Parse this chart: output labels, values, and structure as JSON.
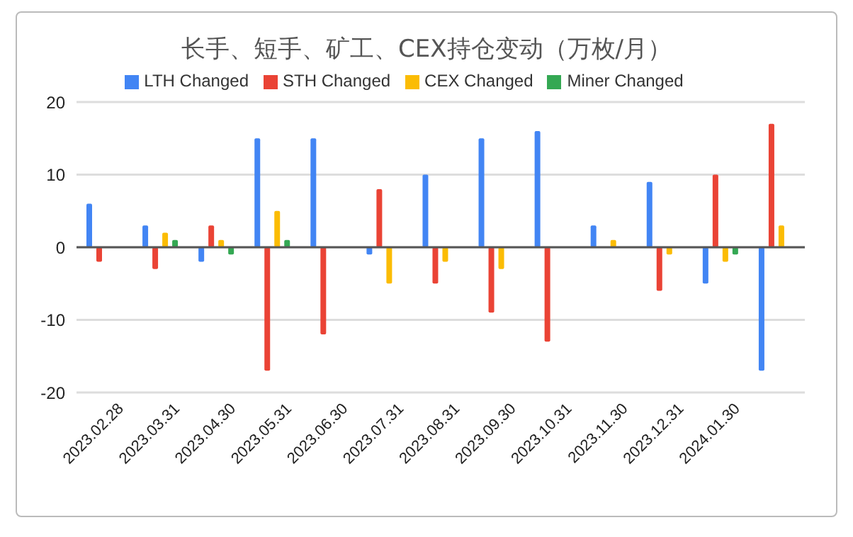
{
  "chart_data": {
    "type": "bar",
    "title": "长手、短手、矿工、CEX持仓变动（万枚/月）",
    "categories": [
      "2023.02.28",
      "2023.03.31",
      "2023.04.30",
      "2023.05.31",
      "2023.06.30",
      "2023.07.31",
      "2023.08.31",
      "2023.09.30",
      "2023.10.31",
      "2023.11.30",
      "2023.12.31",
      "2024.01.30",
      null
    ],
    "series": [
      {
        "name": "LTH Changed",
        "color": "#4285f4",
        "values": [
          6,
          3,
          -2,
          15,
          15,
          -1,
          10,
          15,
          16,
          3,
          9,
          -5,
          -17
        ]
      },
      {
        "name": "STH Changed",
        "color": "#ea4335",
        "values": [
          -2,
          -3,
          3,
          -17,
          -12,
          8,
          -5,
          -9,
          -13,
          0,
          -6,
          10,
          17
        ]
      },
      {
        "name": "CEX Changed",
        "color": "#fbbc04",
        "values": [
          0,
          2,
          1,
          5,
          0,
          -5,
          -2,
          -3,
          0,
          1,
          -1,
          -2,
          3
        ]
      },
      {
        "name": "Miner Changed",
        "color": "#34a853",
        "values": [
          0,
          1,
          -1,
          1,
          0,
          0,
          0,
          0,
          0,
          0,
          0,
          -1,
          0
        ]
      }
    ],
    "ylim": [
      -20,
      20
    ],
    "yticks": [
      -20,
      -10,
      0,
      10,
      20
    ],
    "grid": "y",
    "legend": "top"
  }
}
